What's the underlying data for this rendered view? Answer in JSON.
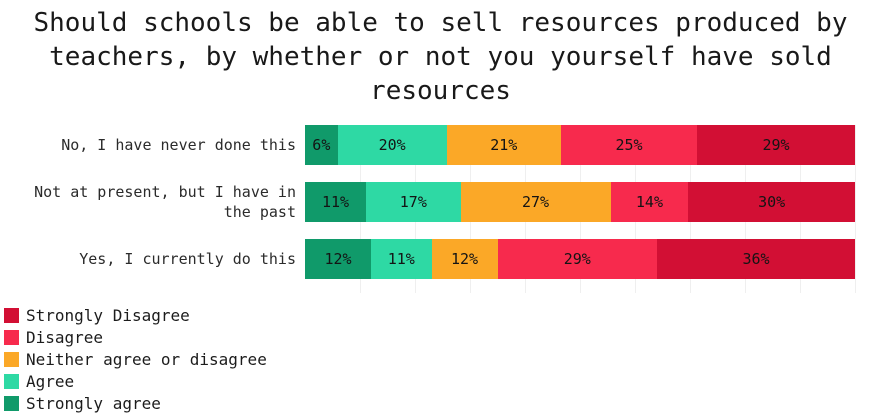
{
  "title": "Should schools be able to sell resources produced by teachers, by whether or not you yourself have sold resources",
  "title_lines": [
    "Should schools be able to sell resources produced by",
    "teachers, by whether or not you yourself have sold",
    "resources"
  ],
  "chart_data": {
    "type": "bar",
    "stacked": true,
    "orientation": "horizontal",
    "unit": "%",
    "xlim": [
      0,
      100
    ],
    "grid": "faint vertical lines every 10%",
    "value_labels": "inside segments, black text",
    "categories": [
      "No, I have never done this",
      "Not at present, but I have in the past",
      "Yes, I currently do this"
    ],
    "series": [
      {
        "name": "Strongly agree",
        "color": "#109a6a",
        "values": [
          6,
          11,
          12
        ]
      },
      {
        "name": "Agree",
        "color": "#2ed9a4",
        "values": [
          20,
          17,
          11
        ]
      },
      {
        "name": "Neither agree or disagree",
        "color": "#fba827",
        "values": [
          21,
          27,
          12
        ]
      },
      {
        "name": "Disagree",
        "color": "#f72a4d",
        "values": [
          25,
          14,
          29
        ]
      },
      {
        "name": "Strongly Disagree",
        "color": "#d20f34",
        "values": [
          29,
          30,
          36
        ]
      }
    ],
    "segment_order_left_to_right": [
      "Strongly agree",
      "Agree",
      "Neither agree or disagree",
      "Disagree",
      "Strongly Disagree"
    ],
    "legend_position": "bottom-left",
    "legend": [
      {
        "label": "Strongly Disagree",
        "color": "#d20f34"
      },
      {
        "label": "Disagree",
        "color": "#f72a4d"
      },
      {
        "label": "Neither agree or disagree",
        "color": "#fba827"
      },
      {
        "label": "Agree",
        "color": "#2ed9a4"
      },
      {
        "label": "Strongly agree",
        "color": "#109a6a"
      }
    ]
  }
}
